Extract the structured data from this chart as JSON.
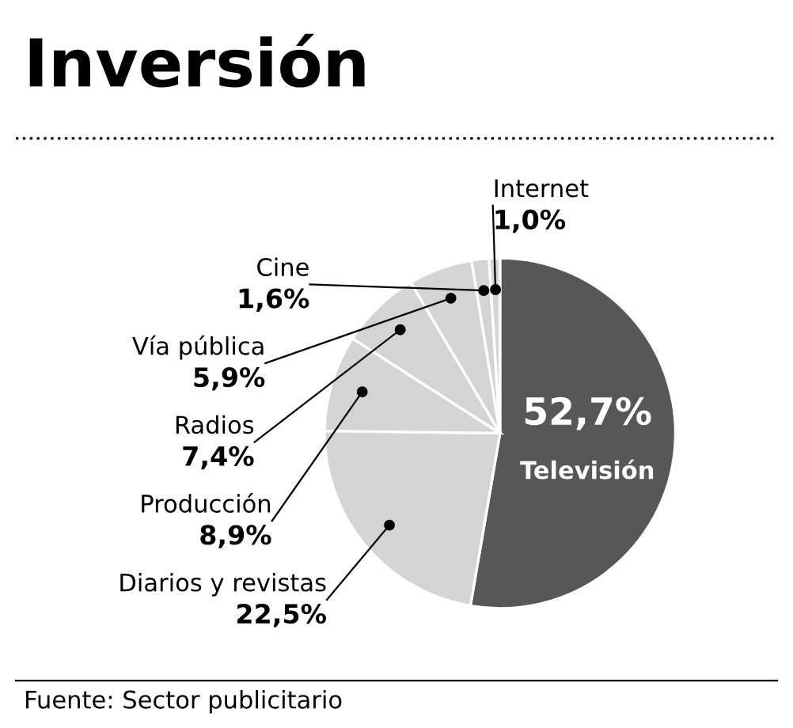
{
  "chart_data": {
    "type": "pie",
    "title": "Inversión",
    "categories": [
      "Televisión",
      "Diarios y revistas",
      "Producción",
      "Radios",
      "Vía pública",
      "Cine",
      "Internet"
    ],
    "values": [
      52.7,
      22.5,
      8.9,
      7.4,
      5.9,
      1.6,
      1.0
    ],
    "value_labels": [
      "52,7%",
      "22,5%",
      "8,9%",
      "7,4%",
      "5,9%",
      "1,6%",
      "1,0%"
    ],
    "colors": [
      "#575757",
      "#d4d4d4",
      "#d4d4d4",
      "#d4d4d4",
      "#d4d4d4",
      "#d4d4d4",
      "#d4d4d4"
    ],
    "annotations": [
      "Fuente: Sector publicitario"
    ]
  }
}
